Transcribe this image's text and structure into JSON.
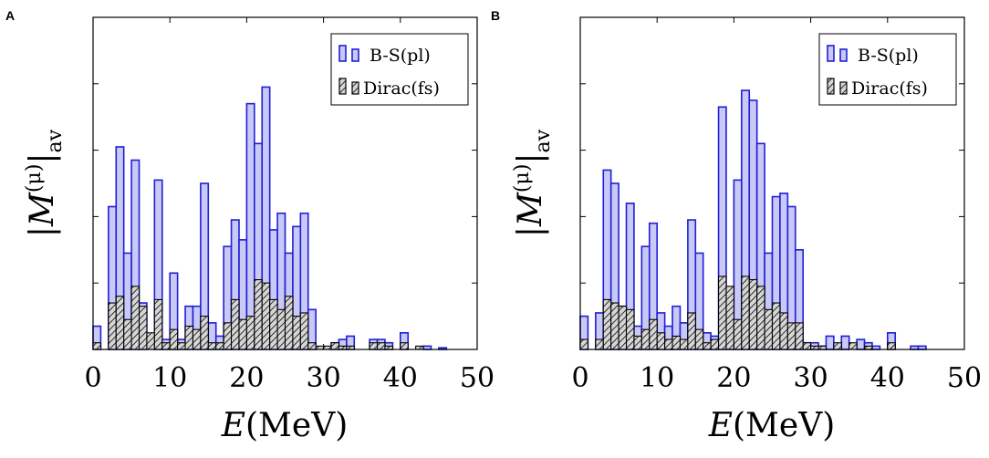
{
  "chart_data": [
    {
      "panel": "A",
      "type": "bar",
      "xlabel_var": "E",
      "xlabel_unit": "(MeV)",
      "ylabel": "|M^(μ)|_av",
      "ylabel_parts": {
        "open": "|",
        "var": "M",
        "sup": "(μ)",
        "close": "|",
        "sub": "av"
      },
      "xlim": [
        0,
        50
      ],
      "ylim": [
        0,
        1.0
      ],
      "xticks": [
        "0",
        "10",
        "20",
        "30",
        "40",
        "50"
      ],
      "yticks": [
        0.2,
        0.4,
        0.6,
        0.8
      ],
      "ytick_labels_shown": false,
      "legend_position": "top-right",
      "bar_width": 1.0,
      "series": [
        {
          "name": "B-S(pl)",
          "style": "blue-filled",
          "color": "#1f1fd8",
          "fill": "#c9c9f5",
          "points": [
            [
              0.5,
              0.07
            ],
            [
              2.5,
              0.43
            ],
            [
              3.5,
              0.61
            ],
            [
              4.5,
              0.29
            ],
            [
              5.5,
              0.57
            ],
            [
              6.5,
              0.14
            ],
            [
              8.5,
              0.51
            ],
            [
              9.5,
              0.03
            ],
            [
              10.5,
              0.23
            ],
            [
              11.5,
              0.03
            ],
            [
              12.5,
              0.13
            ],
            [
              13.5,
              0.13
            ],
            [
              14.5,
              0.5
            ],
            [
              15.5,
              0.08
            ],
            [
              16.5,
              0.04
            ],
            [
              17.5,
              0.31
            ],
            [
              18.5,
              0.39
            ],
            [
              19.5,
              0.33
            ],
            [
              20.5,
              0.74
            ],
            [
              21.5,
              0.62
            ],
            [
              22.5,
              0.79
            ],
            [
              23.5,
              0.36
            ],
            [
              24.5,
              0.41
            ],
            [
              25.5,
              0.29
            ],
            [
              26.5,
              0.37
            ],
            [
              27.5,
              0.41
            ],
            [
              28.5,
              0.12
            ],
            [
              31.5,
              0.02
            ],
            [
              32.5,
              0.03
            ],
            [
              33.5,
              0.04
            ],
            [
              36.5,
              0.03
            ],
            [
              37.5,
              0.03
            ],
            [
              38.5,
              0.02
            ],
            [
              40.5,
              0.05
            ],
            [
              43.5,
              0.01
            ],
            [
              45.5,
              0.005
            ]
          ]
        },
        {
          "name": "Dirac(fs)",
          "style": "black-hatched",
          "color": "#000000",
          "fill": "#d6d6d6",
          "points": [
            [
              0.5,
              0.02
            ],
            [
              2.5,
              0.14
            ],
            [
              3.5,
              0.16
            ],
            [
              4.5,
              0.09
            ],
            [
              5.5,
              0.19
            ],
            [
              6.5,
              0.13
            ],
            [
              7.5,
              0.05
            ],
            [
              8.5,
              0.15
            ],
            [
              9.5,
              0.02
            ],
            [
              10.5,
              0.06
            ],
            [
              11.5,
              0.02
            ],
            [
              12.5,
              0.07
            ],
            [
              13.5,
              0.06
            ],
            [
              14.5,
              0.1
            ],
            [
              15.5,
              0.02
            ],
            [
              16.5,
              0.02
            ],
            [
              17.5,
              0.08
            ],
            [
              18.5,
              0.15
            ],
            [
              19.5,
              0.09
            ],
            [
              20.5,
              0.1
            ],
            [
              21.5,
              0.21
            ],
            [
              22.5,
              0.2
            ],
            [
              23.5,
              0.15
            ],
            [
              24.5,
              0.12
            ],
            [
              25.5,
              0.16
            ],
            [
              26.5,
              0.1
            ],
            [
              27.5,
              0.11
            ],
            [
              28.5,
              0.02
            ],
            [
              29.5,
              0.01
            ],
            [
              30.5,
              0.01
            ],
            [
              31.5,
              0.02
            ],
            [
              32.5,
              0.01
            ],
            [
              33.5,
              0.01
            ],
            [
              36.5,
              0.02
            ],
            [
              37.5,
              0.02
            ],
            [
              38.5,
              0.01
            ],
            [
              40.5,
              0.02
            ],
            [
              42.5,
              0.01
            ]
          ]
        }
      ]
    },
    {
      "panel": "B",
      "type": "bar",
      "xlabel_var": "E",
      "xlabel_unit": "(MeV)",
      "ylabel": "|M^(μ)|_av",
      "ylabel_parts": {
        "open": "|",
        "var": "M",
        "sup": "(μ)",
        "close": "|",
        "sub": "av"
      },
      "xlim": [
        0,
        50
      ],
      "ylim": [
        0,
        1.0
      ],
      "xticks": [
        "0",
        "10",
        "20",
        "30",
        "40",
        "50"
      ],
      "yticks": [
        0.2,
        0.4,
        0.6,
        0.8
      ],
      "ytick_labels_shown": false,
      "legend_position": "top-right",
      "bar_width": 1.0,
      "series": [
        {
          "name": "B-S(pl)",
          "style": "blue-filled",
          "color": "#1f1fd8",
          "fill": "#c9c9f5",
          "points": [
            [
              0.5,
              0.1
            ],
            [
              2.5,
              0.11
            ],
            [
              3.5,
              0.54
            ],
            [
              4.5,
              0.5
            ],
            [
              5.5,
              0.13
            ],
            [
              6.5,
              0.44
            ],
            [
              7.5,
              0.07
            ],
            [
              8.5,
              0.31
            ],
            [
              9.5,
              0.38
            ],
            [
              10.5,
              0.11
            ],
            [
              11.5,
              0.07
            ],
            [
              12.5,
              0.13
            ],
            [
              13.5,
              0.08
            ],
            [
              14.5,
              0.39
            ],
            [
              15.5,
              0.29
            ],
            [
              16.5,
              0.05
            ],
            [
              17.5,
              0.04
            ],
            [
              18.5,
              0.73
            ],
            [
              19.5,
              0.06
            ],
            [
              20.5,
              0.51
            ],
            [
              21.5,
              0.78
            ],
            [
              22.5,
              0.75
            ],
            [
              23.5,
              0.62
            ],
            [
              24.5,
              0.29
            ],
            [
              25.5,
              0.46
            ],
            [
              26.5,
              0.47
            ],
            [
              27.5,
              0.43
            ],
            [
              28.5,
              0.3
            ],
            [
              29.5,
              0.02
            ],
            [
              30.5,
              0.02
            ],
            [
              31.5,
              0.01
            ],
            [
              32.5,
              0.04
            ],
            [
              33.5,
              0.01
            ],
            [
              34.5,
              0.04
            ],
            [
              36.5,
              0.03
            ],
            [
              37.5,
              0.02
            ],
            [
              38.5,
              0.01
            ],
            [
              40.5,
              0.05
            ],
            [
              43.5,
              0.01
            ],
            [
              44.5,
              0.01
            ]
          ]
        },
        {
          "name": "Dirac(fs)",
          "style": "black-hatched",
          "color": "#000000",
          "fill": "#d6d6d6",
          "points": [
            [
              0.5,
              0.03
            ],
            [
              2.5,
              0.03
            ],
            [
              3.5,
              0.15
            ],
            [
              4.5,
              0.14
            ],
            [
              5.5,
              0.13
            ],
            [
              6.5,
              0.12
            ],
            [
              7.5,
              0.04
            ],
            [
              8.5,
              0.06
            ],
            [
              9.5,
              0.09
            ],
            [
              10.5,
              0.05
            ],
            [
              11.5,
              0.03
            ],
            [
              12.5,
              0.04
            ],
            [
              13.5,
              0.03
            ],
            [
              14.5,
              0.11
            ],
            [
              15.5,
              0.06
            ],
            [
              16.5,
              0.02
            ],
            [
              17.5,
              0.03
            ],
            [
              18.5,
              0.22
            ],
            [
              19.5,
              0.19
            ],
            [
              20.5,
              0.09
            ],
            [
              21.5,
              0.22
            ],
            [
              22.5,
              0.21
            ],
            [
              23.5,
              0.19
            ],
            [
              24.5,
              0.12
            ],
            [
              25.5,
              0.14
            ],
            [
              26.5,
              0.11
            ],
            [
              27.5,
              0.08
            ],
            [
              28.5,
              0.08
            ],
            [
              29.5,
              0.02
            ],
            [
              30.5,
              0.01
            ],
            [
              31.5,
              0.01
            ],
            [
              33.5,
              0.02
            ],
            [
              35.5,
              0.02
            ],
            [
              37.5,
              0.01
            ],
            [
              40.5,
              0.02
            ]
          ]
        }
      ]
    }
  ]
}
